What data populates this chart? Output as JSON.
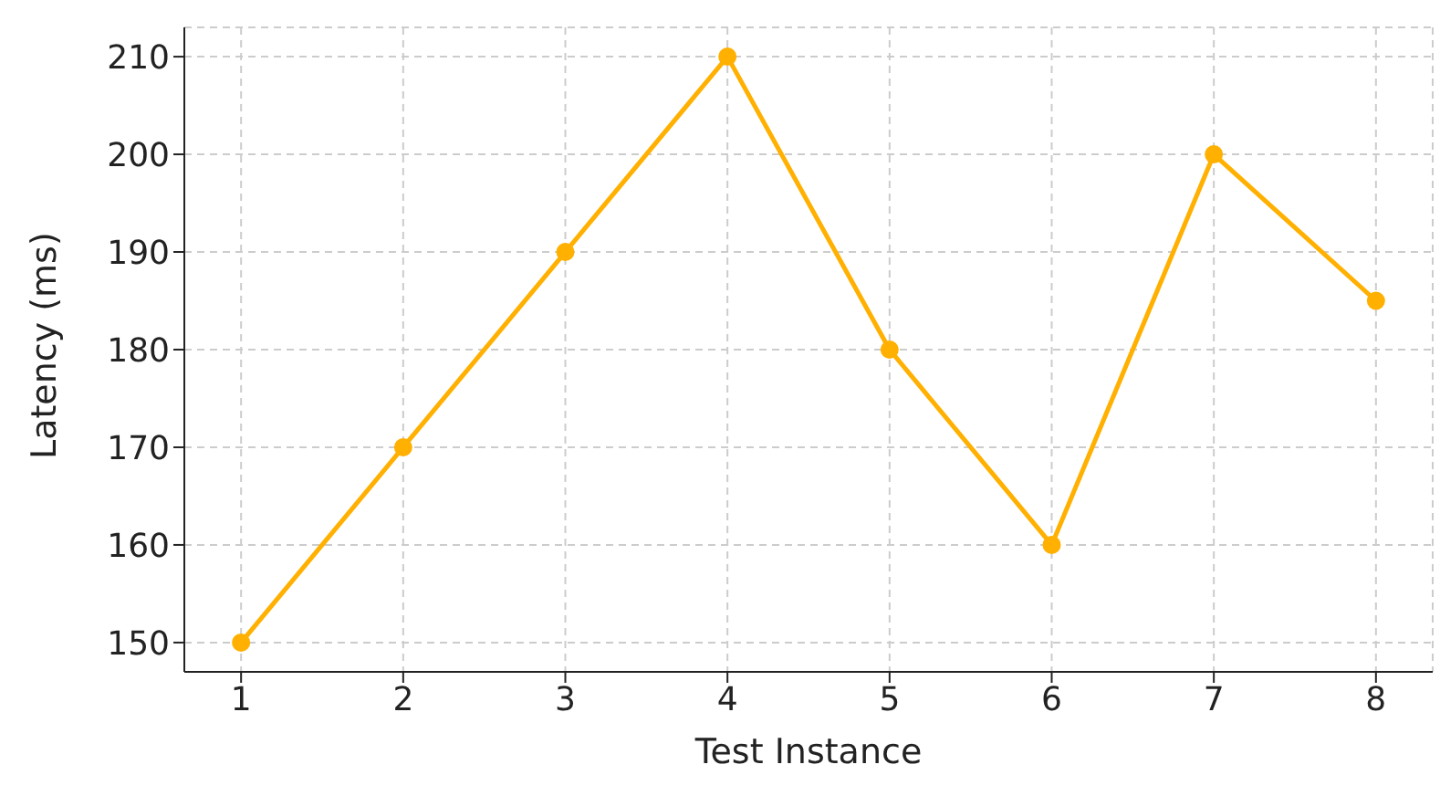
{
  "chart_data": {
    "type": "line",
    "xlabel": "Test Instance",
    "ylabel": "Latency (ms)",
    "x": [
      1,
      2,
      3,
      4,
      5,
      6,
      7,
      8
    ],
    "series": [
      {
        "color": "#ffb000",
        "values": [
          150,
          170,
          190,
          210,
          180,
          160,
          200,
          185
        ]
      }
    ],
    "xlim": [
      0.65,
      8.35
    ],
    "xticks": [
      1,
      2,
      3,
      4,
      5,
      6,
      7,
      8
    ],
    "ylim": [
      147,
      213
    ],
    "yticks": [
      150,
      160,
      170,
      180,
      190,
      200,
      210
    ],
    "grid": true,
    "marker": "circle",
    "line_style": "solid"
  }
}
